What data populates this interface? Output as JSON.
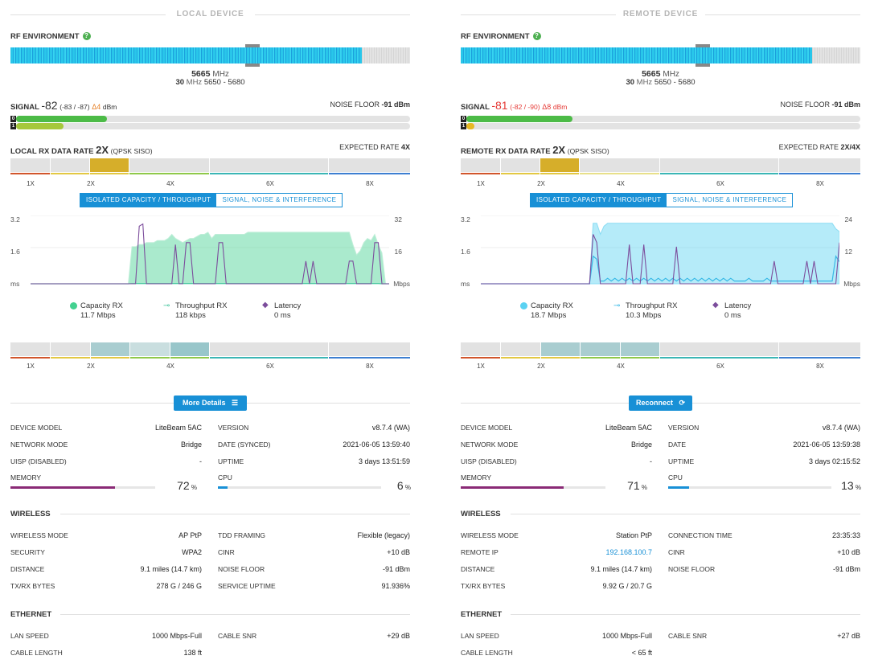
{
  "local": {
    "header": "LOCAL DEVICE",
    "rf": {
      "label": "RF ENVIRONMENT",
      "help": "?",
      "freq": "5665",
      "freq_unit": "MHz",
      "width": "30",
      "width_unit": "MHz",
      "range": "5650 - 5680",
      "fill_pct": 88
    },
    "signal": {
      "label": "SIGNAL",
      "value": "-82",
      "chains": "(-83 / -87)",
      "delta": "Δ4",
      "unit": "dBm",
      "color": "#333333"
    },
    "noise": {
      "label": "NOISE FLOOR",
      "value": "-91 dBm"
    },
    "chain0": {
      "tag": "0",
      "level": 0.23,
      "color": "#4cbb47"
    },
    "chain1": {
      "tag": "1",
      "level": 0.12,
      "color": "#a5c83b"
    },
    "rate": {
      "label": "LOCAL RX DATA RATE",
      "value": "2x",
      "mode": "(QPSK SISO)",
      "expected_label": "EXPECTED RATE",
      "expected": "4X"
    },
    "ticks": [
      "1X",
      "2X",
      "4X",
      "6X",
      "8X"
    ],
    "tabs": [
      "ISOLATED CAPACITY / THROUGHPUT",
      "SIGNAL, NOISE & INTERFERENCE"
    ],
    "chart_data": {
      "type": "area",
      "y_left_ticks": [
        "3.2",
        "1.6",
        "ms"
      ],
      "y_right_ticks": [
        "32",
        "16",
        "Mbps"
      ],
      "y_right_max": 32,
      "y_left_max": 3.2,
      "x_count": 100,
      "series": [
        {
          "name": "Capacity RX",
          "color": "#43d190",
          "values": [
            0,
            0,
            0,
            0,
            0,
            0,
            0,
            0,
            0,
            0,
            0,
            0,
            0,
            0,
            0,
            0,
            0,
            0,
            0,
            0,
            0,
            0,
            0,
            0,
            0,
            0,
            0,
            0,
            18,
            18,
            19,
            19,
            20,
            20,
            20,
            21,
            21,
            21,
            22,
            24,
            22,
            21,
            20,
            21,
            22,
            22,
            23,
            24,
            24,
            25,
            22,
            24,
            24,
            24,
            24,
            24,
            24,
            24,
            24,
            24,
            25,
            25,
            25,
            25,
            25,
            25,
            25,
            25,
            25,
            25,
            25,
            25,
            25,
            25,
            25,
            25,
            25,
            25,
            25,
            25,
            25,
            25,
            25,
            25,
            25,
            25,
            25,
            25,
            25,
            19,
            14,
            16,
            20,
            22,
            21,
            24,
            19,
            15,
            0,
            0
          ]
        },
        {
          "name": "Throughput RX",
          "color": "#3ec39a",
          "values": [
            0,
            0,
            0,
            0,
            0,
            0,
            0,
            0,
            0,
            0,
            0,
            0,
            0,
            0,
            0,
            0,
            0,
            0,
            0,
            0,
            0,
            0,
            0,
            0,
            0,
            0,
            0,
            0,
            0.1,
            0.1,
            0.1,
            0.1,
            0.1,
            0.1,
            0.1,
            0.1,
            0.1,
            0.1,
            0.1,
            0.1,
            0.1,
            0.1,
            0.1,
            0.1,
            0.1,
            0.1,
            0.1,
            0.1,
            0.1,
            0.1,
            0.1,
            0.1,
            0.1,
            0.1,
            0.1,
            0.1,
            0.1,
            0.1,
            0.1,
            0.1,
            0.1,
            0.1,
            0.1,
            0.1,
            0.1,
            0.1,
            0.1,
            0.1,
            0.1,
            0.1,
            0.1,
            0.1,
            0.1,
            0.1,
            0.1,
            0.1,
            0.1,
            0.1,
            0.1,
            0.1,
            0.1,
            0.1,
            0.1,
            0.1,
            0.1,
            0.1,
            0.1,
            0.1,
            0.1,
            0.1,
            0.1,
            0.1,
            0.1,
            0.1,
            0.1,
            0.1,
            0.1,
            0,
            0,
            0
          ]
        },
        {
          "name": "Latency",
          "color": "#7c4d9c",
          "values": [
            0,
            0,
            0,
            0,
            0,
            0,
            0,
            0,
            0,
            0,
            0,
            0,
            0,
            0,
            0,
            0,
            0,
            0,
            0,
            0,
            0,
            0,
            0,
            0,
            0,
            0,
            0,
            0,
            0,
            0,
            2.8,
            2.9,
            0,
            0,
            0,
            0,
            0,
            0,
            0,
            0,
            1.9,
            0,
            0,
            2.0,
            2.0,
            0,
            0,
            0,
            0,
            0,
            0,
            0,
            2.0,
            2.0,
            0,
            0,
            0,
            0,
            0,
            0,
            0,
            0,
            0,
            0,
            0,
            0,
            0,
            0,
            0,
            0,
            0,
            0,
            0,
            0,
            0,
            0,
            1.1,
            0,
            1.1,
            0,
            0,
            0,
            0,
            0,
            0,
            0,
            0,
            0,
            1.1,
            1.1,
            0,
            0,
            0,
            0,
            0,
            2.0,
            2.0,
            0,
            0,
            0
          ]
        }
      ]
    },
    "legend": [
      {
        "name": "Capacity RX",
        "value": "11.7 Mbps",
        "color": "#43d190"
      },
      {
        "name": "Throughput RX",
        "value": "118 kbps",
        "color": "#3ec39a"
      },
      {
        "name": "Latency",
        "value": "0 ms",
        "color": "#7c4d9c"
      }
    ],
    "action": {
      "label": "More Details",
      "icon": "list-icon"
    },
    "info_left": [
      {
        "label": "DEVICE MODEL",
        "value": "LiteBeam 5AC"
      },
      {
        "label": "NETWORK MODE",
        "value": "Bridge"
      },
      {
        "label": "UISP (DISABLED)",
        "value": "-"
      },
      {
        "label": "MEMORY",
        "value": "72",
        "unit": "%",
        "level": 0.72,
        "color": "#8a2a76"
      }
    ],
    "info_right": [
      {
        "label": "VERSION",
        "value": "v8.7.4 (WA)"
      },
      {
        "label": "DATE (SYNCED)",
        "value": "2021-06-05 13:59:40"
      },
      {
        "label": "UPTIME",
        "value": "3 days 13:51:59"
      },
      {
        "label": "CPU",
        "value": "6",
        "unit": "%",
        "level": 0.06,
        "color": "#1890d6"
      }
    ],
    "wireless_title": "WIRELESS",
    "wireless_left": [
      {
        "label": "WIRELESS MODE",
        "value": "AP PtP"
      },
      {
        "label": "SECURITY",
        "value": "WPA2"
      },
      {
        "label": "DISTANCE",
        "value": "9.1 miles (14.7 km)"
      },
      {
        "label": "TX/RX BYTES",
        "value": "278 G / 246 G"
      }
    ],
    "wireless_right": [
      {
        "label": "TDD FRAMING",
        "value": "Flexible (legacy)"
      },
      {
        "label": "CINR",
        "value": "+10 dB"
      },
      {
        "label": "NOISE FLOOR",
        "value": "-91 dBm"
      },
      {
        "label": "SERVICE UPTIME",
        "value": "91.936%"
      }
    ],
    "ethernet_title": "ETHERNET",
    "ethernet_left": [
      {
        "label": "LAN SPEED",
        "value": "1000 Mbps-Full"
      },
      {
        "label": "CABLE LENGTH",
        "value": "138 ft"
      }
    ],
    "ethernet_right": [
      {
        "label": "CABLE SNR",
        "value": "+29 dB"
      }
    ]
  },
  "remote": {
    "header": "REMOTE DEVICE",
    "rf": {
      "label": "RF ENVIRONMENT",
      "help": "?",
      "freq": "5665",
      "freq_unit": "MHz",
      "width": "30",
      "width_unit": "MHz",
      "range": "5650 - 5680",
      "fill_pct": 88
    },
    "signal": {
      "label": "SIGNAL",
      "value": "-81",
      "chains": "(-82 / -90)",
      "delta": "Δ8",
      "unit": "dBm",
      "color": "#e53935"
    },
    "noise": {
      "label": "NOISE FLOOR",
      "value": "-91 dBm"
    },
    "chain0": {
      "tag": "0",
      "level": 0.27,
      "color": "#4cbb47"
    },
    "chain1": {
      "tag": "1",
      "level": 0.02,
      "color": "#e8b923"
    },
    "rate": {
      "label": "REMOTE RX DATA RATE",
      "value": "2x",
      "mode": "(QPSK SISO)",
      "expected_label": "EXPECTED RATE",
      "expected": "2X/4X"
    },
    "ticks": [
      "1X",
      "2X",
      "4X",
      "6X",
      "8X"
    ],
    "tabs": [
      "ISOLATED CAPACITY / THROUGHPUT",
      "SIGNAL, NOISE & INTERFERENCE"
    ],
    "chart_data": {
      "type": "area",
      "y_left_ticks": [
        "3.2",
        "1.6",
        "ms"
      ],
      "y_right_ticks": [
        "24",
        "12",
        "Mbps"
      ],
      "y_right_max": 24,
      "y_left_max": 3.2,
      "x_count": 100,
      "series": [
        {
          "name": "Capacity RX",
          "color": "#5bd2f2",
          "values": [
            0,
            0,
            0,
            0,
            0,
            0,
            0,
            0,
            0,
            0,
            0,
            0,
            0,
            0,
            0,
            0,
            0,
            0,
            0,
            0,
            0,
            0,
            0,
            0,
            0,
            0,
            0,
            0,
            0,
            0,
            0,
            22,
            22,
            18,
            21,
            22,
            22,
            22,
            22,
            22,
            22,
            22,
            22,
            22,
            22,
            22,
            22,
            22,
            22,
            22,
            22,
            22,
            22,
            22,
            22,
            22,
            22,
            22,
            22,
            22,
            22,
            22,
            22,
            22,
            22,
            22,
            22,
            22,
            22,
            22,
            22,
            22,
            22,
            22,
            22,
            22,
            22,
            22,
            22,
            22,
            22,
            22,
            22,
            22,
            22,
            22,
            22,
            22,
            22,
            22,
            22,
            22,
            22,
            22,
            22,
            22,
            22,
            22,
            20,
            19
          ]
        },
        {
          "name": "Throughput RX",
          "color": "#36b8e6",
          "values": [
            0,
            0,
            0,
            0,
            0,
            0,
            0,
            0,
            0,
            0,
            0,
            0,
            0,
            0,
            0,
            0,
            0,
            0,
            0,
            0,
            0,
            0,
            0,
            0,
            0,
            0,
            0,
            0,
            0,
            0,
            0,
            10,
            9,
            1,
            1,
            2,
            1,
            2,
            1,
            2,
            1,
            2,
            1,
            2,
            1,
            2,
            1,
            2,
            1,
            2,
            1,
            2,
            1,
            2,
            1,
            2,
            1,
            2,
            1,
            2,
            1,
            2,
            1,
            2,
            1,
            2,
            1,
            2,
            1,
            2,
            1,
            1,
            1,
            1,
            2,
            1,
            1,
            1,
            1,
            2,
            1,
            1,
            1,
            1,
            1,
            1,
            1,
            1,
            1,
            1,
            1,
            1,
            1,
            1,
            1,
            1,
            1,
            1,
            10,
            8
          ]
        },
        {
          "name": "Latency",
          "color": "#7c4d9c",
          "values": [
            0,
            0,
            0,
            0,
            0,
            0,
            0,
            0,
            0,
            0,
            0,
            0,
            0,
            0,
            0,
            0,
            0,
            0,
            0,
            0,
            0,
            0,
            0,
            0,
            0,
            0,
            0,
            0,
            0,
            0,
            0,
            2.4,
            2.0,
            0,
            0,
            0,
            0,
            0,
            0,
            0,
            0,
            1.9,
            0,
            0,
            0,
            1.9,
            0,
            0,
            0,
            0,
            0,
            0,
            0,
            0,
            1.8,
            0,
            0,
            0,
            0,
            0,
            0,
            0,
            0,
            0,
            0,
            0,
            0,
            0,
            0,
            0,
            0,
            0,
            0,
            0,
            0,
            0,
            0,
            0,
            0,
            0,
            0,
            1.1,
            0,
            0,
            0,
            0,
            0,
            0,
            0,
            0,
            1.1,
            0,
            1.1,
            0,
            0,
            0,
            0,
            0,
            0,
            2.0
          ]
        }
      ]
    },
    "legend": [
      {
        "name": "Capacity RX",
        "value": "18.7 Mbps",
        "color": "#5bd2f2"
      },
      {
        "name": "Throughput RX",
        "value": "10.3 Mbps",
        "color": "#36b8e6"
      },
      {
        "name": "Latency",
        "value": "0 ms",
        "color": "#7c4d9c"
      }
    ],
    "action": {
      "label": "Reconnect",
      "icon": "refresh-icon"
    },
    "info_left": [
      {
        "label": "DEVICE MODEL",
        "value": "LiteBeam 5AC"
      },
      {
        "label": "NETWORK MODE",
        "value": "Bridge"
      },
      {
        "label": "UISP (DISABLED)",
        "value": "-"
      },
      {
        "label": "MEMORY",
        "value": "71",
        "unit": "%",
        "level": 0.71,
        "color": "#8a2a76"
      }
    ],
    "info_right": [
      {
        "label": "VERSION",
        "value": "v8.7.4 (WA)"
      },
      {
        "label": "DATE",
        "value": "2021-06-05 13:59:38"
      },
      {
        "label": "UPTIME",
        "value": "3 days 02:15:52"
      },
      {
        "label": "CPU",
        "value": "13",
        "unit": "%",
        "level": 0.13,
        "color": "#1890d6"
      }
    ],
    "wireless_title": "WIRELESS",
    "wireless_left": [
      {
        "label": "WIRELESS MODE",
        "value": "Station PtP"
      },
      {
        "label": "REMOTE IP",
        "value": "192.168.100.7",
        "link": true
      },
      {
        "label": "DISTANCE",
        "value": "9.1 miles (14.7 km)"
      },
      {
        "label": "TX/RX BYTES",
        "value": "9.92 G / 20.7 G"
      }
    ],
    "wireless_right": [
      {
        "label": "CONNECTION TIME",
        "value": "23:35:33"
      },
      {
        "label": "CINR",
        "value": "+10 dB"
      },
      {
        "label": "NOISE FLOOR",
        "value": "-91 dBm"
      }
    ],
    "ethernet_title": "ETHERNET",
    "ethernet_left": [
      {
        "label": "LAN SPEED",
        "value": "1000 Mbps-Full"
      },
      {
        "label": "CABLE LENGTH",
        "value": "< 65 ft"
      }
    ],
    "ethernet_right": [
      {
        "label": "CABLE SNR",
        "value": "+27 dB"
      }
    ]
  }
}
